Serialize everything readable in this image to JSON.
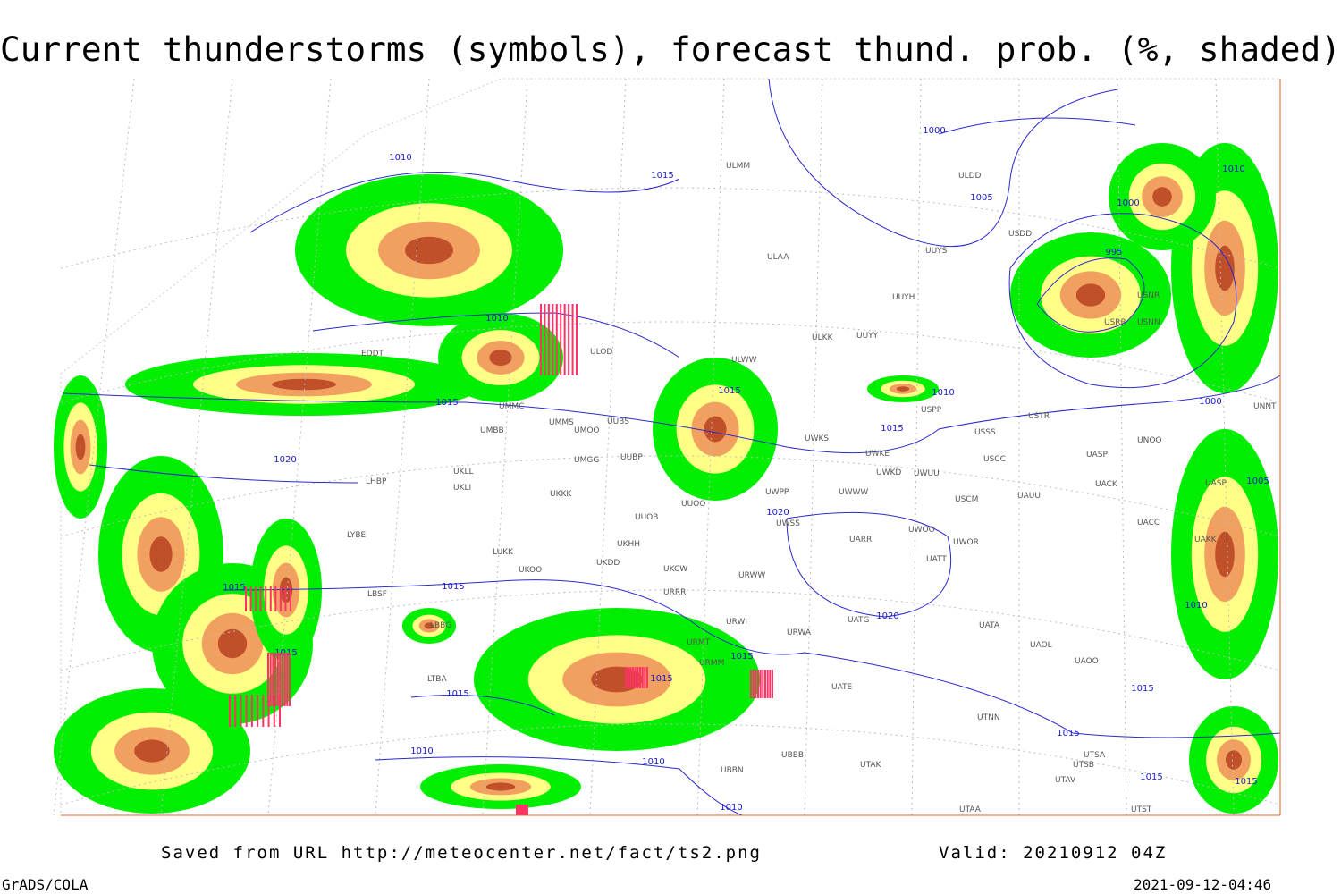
{
  "title": "Current thunderstorms (symbols), forecast thund. prob. (%, shaded)",
  "footer": {
    "source": "Saved from URL http://meteocenter.net/fact/ts2.png",
    "valid": "Valid: 20210912 04Z",
    "software": "GrADS/COLA",
    "timestamp": "2021-09-12-04:46"
  },
  "isobar_labels": [
    1010,
    1015,
    1000,
    1005,
    1010,
    1000,
    995,
    1010,
    1015,
    1010,
    1015,
    1000,
    1015,
    1020,
    1005,
    1020,
    1015,
    1015,
    1010,
    1020,
    1015,
    1015,
    1015,
    1015,
    1015,
    1015,
    1010,
    1010,
    1015,
    1015,
    1010
  ],
  "stations": [
    "ULMM",
    "ULDD",
    "USDD",
    "ULAA",
    "UUYS",
    "UUYH",
    "ULKK",
    "UUYY",
    "ULWW",
    "ULOD",
    "USNR",
    "USRR",
    "USNN",
    "USPP",
    "USTR",
    "USSS",
    "UNOO",
    "UWKS",
    "UWKE",
    "USCC",
    "UASP",
    "UACK",
    "UASP",
    "UNNT",
    "UWPP",
    "UWWW",
    "UWKD",
    "UWUU",
    "USCM",
    "UAUU",
    "UWSS",
    "UARR",
    "UWOO",
    "UWOR",
    "UATT",
    "UACC",
    "UAKK",
    "URWW",
    "UKCW",
    "URRR",
    "URWI",
    "UATG",
    "UATA",
    "UAOL",
    "UAOO",
    "URWA",
    "URMT",
    "URMM",
    "UATE",
    "UTNN",
    "UTAK",
    "UTSA",
    "UTSB",
    "UTAV",
    "UTST",
    "UTAA",
    "UBBB",
    "UBBN",
    "UKOO",
    "UKDD",
    "UKHH",
    "UUOB",
    "UUOO",
    "UKKK",
    "UKLL",
    "UKLI",
    "UUBP",
    "UMGG",
    "UMMS",
    "UMOO",
    "UUBS",
    "UMMC",
    "UMBB",
    "LHBP",
    "LYBE",
    "LUKK",
    "LBSF",
    "LBBG",
    "LTBA",
    "EDDT"
  ]
}
